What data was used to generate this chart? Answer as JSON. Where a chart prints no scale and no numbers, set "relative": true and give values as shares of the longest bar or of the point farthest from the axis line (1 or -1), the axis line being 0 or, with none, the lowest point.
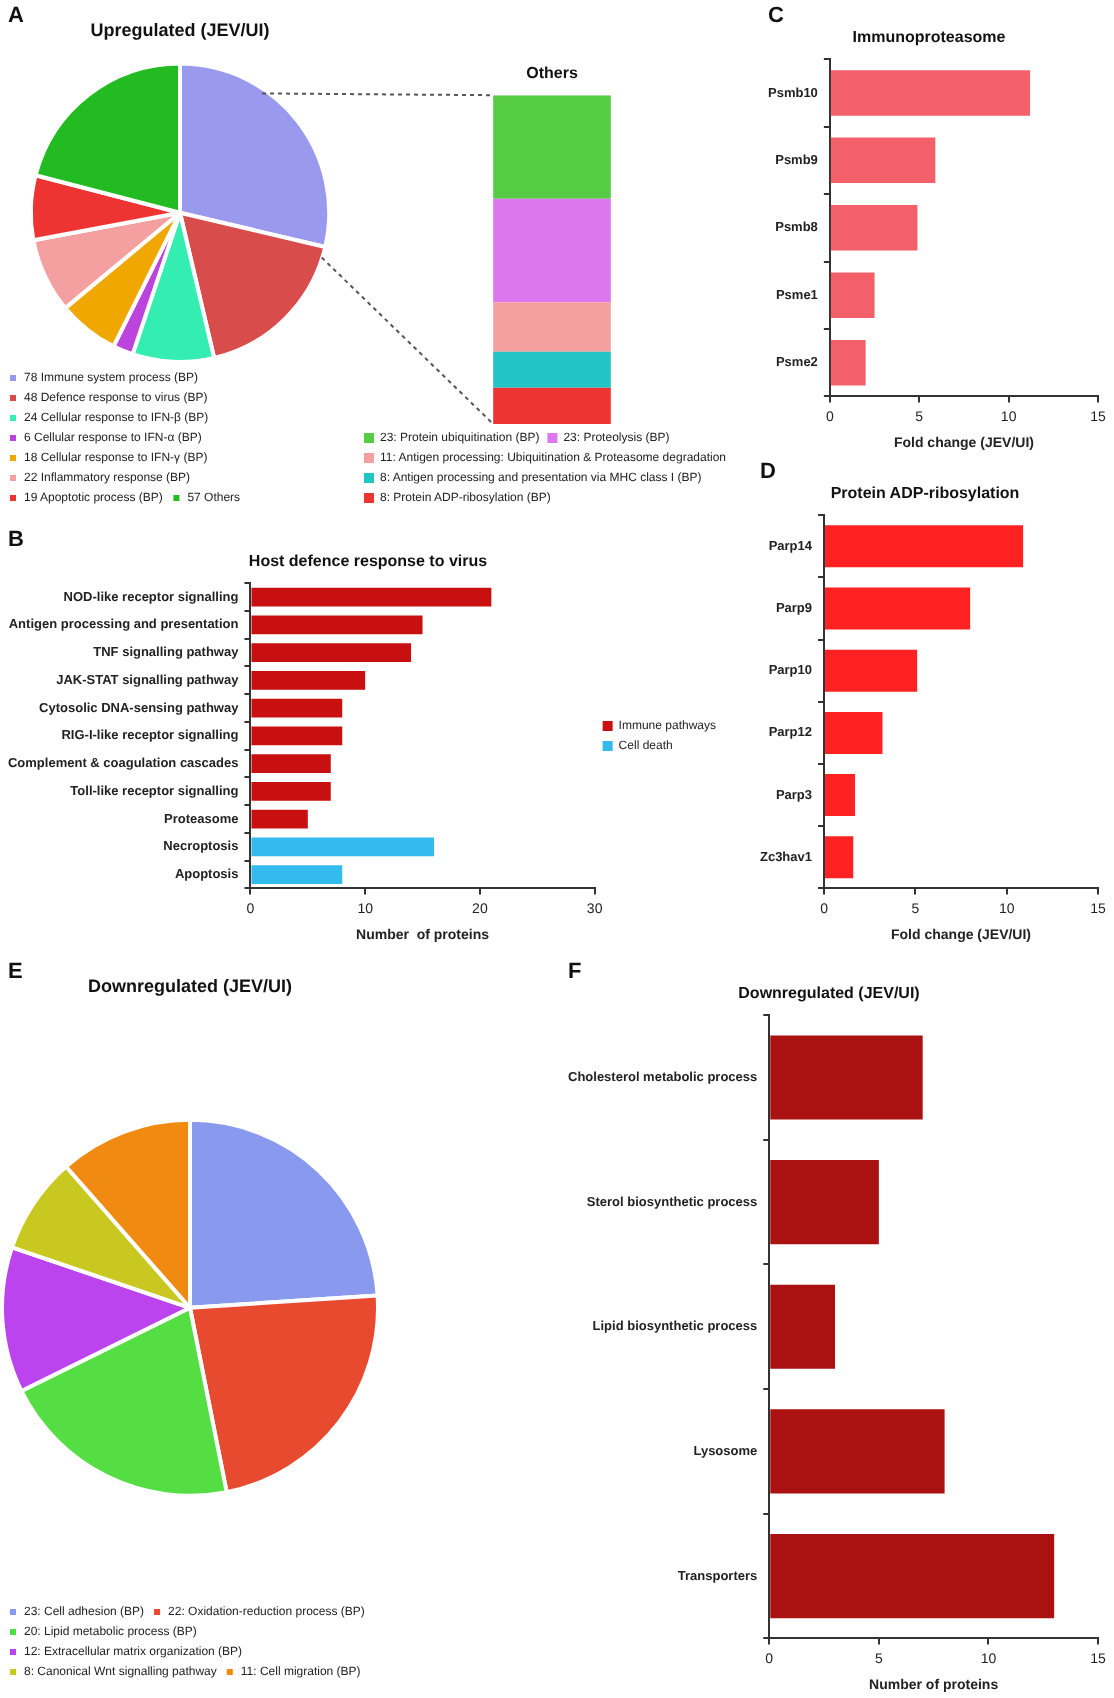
{
  "chart_data": [
    {
      "type": "pie",
      "title": "Upregulated (JEV/UI)",
      "annotations": [
        "A"
      ],
      "legend": "bottom",
      "categories": [
        "78 Immune system process (BP)",
        "48 Defence response to virus (BP)",
        "24 Cellular response to IFN-β (BP)",
        "6 Cellular response to IFN-α (BP)",
        "18 Cellular response to IFN-γ (BP)",
        "22 Inflammatory response (BP)",
        "19 Apoptotic process (BP)",
        "57 Others"
      ],
      "values": [
        78,
        48,
        24,
        6,
        18,
        22,
        19,
        57
      ],
      "colors": [
        "#9999ee",
        "#d94c4c",
        "#33eeb0",
        "#bb44dd",
        "#f0a800",
        "#f4a0a0",
        "#ee3333",
        "#22bb22"
      ]
    },
    {
      "type": "bar",
      "title": "Others",
      "stacked": true,
      "relative": true,
      "legend": "bottom",
      "categories": [
        null
      ],
      "series": [
        {
          "name": "8: Protein ADP-ribosylation (BP)",
          "color": "#ee3333",
          "values": [
            0.11
          ]
        },
        {
          "name": "8: Antigen processing and presentation via MHC class I (BP)",
          "color": "#22c4c4",
          "values": [
            0.11
          ]
        },
        {
          "name": "11: Antigen processing: Ubiquitination & Proteasome degradation",
          "color": "#f4a0a0",
          "values": [
            0.15
          ]
        },
        {
          "name": "23: Proteolysis (BP)",
          "color": "#dd77ee",
          "values": [
            0.315
          ]
        },
        {
          "name": "23: Protein ubiquitination (BP)",
          "color": "#55cc44",
          "values": [
            0.315
          ]
        }
      ]
    },
    {
      "type": "bar",
      "orientation": "horizontal",
      "title": "Immunoproteasome",
      "annotations": [
        "C"
      ],
      "xlabel": "Fold change (JEV/UI)",
      "categories": [
        "Psmb10",
        "Psmb9",
        "Psmb8",
        "Psme1",
        "Psme2"
      ],
      "values": [
        11.2,
        5.9,
        4.9,
        2.5,
        2.0
      ],
      "color": "#f4606a",
      "xlim": [
        0,
        15
      ],
      "xticks": [
        0,
        5,
        10,
        15
      ]
    },
    {
      "type": "bar",
      "orientation": "horizontal",
      "title": "Host defence response to virus",
      "annotations": [
        "B"
      ],
      "xlabel": "Number  of proteins",
      "legend": "right",
      "categories": [
        "NOD-like receptor signalling",
        "Antigen processing and presentation",
        "TNF signalling pathway",
        "JAK-STAT signalling pathway",
        "Cytosolic DNA-sensing pathway",
        "RIG-I-like receptor signalling",
        "Complement & coagulation cascades",
        "Toll-like receptor signalling",
        "Proteasome",
        "Necroptosis",
        "Apoptosis"
      ],
      "series": [
        {
          "name": "Immune pathways",
          "color": "#c81010",
          "values": [
            21,
            15,
            14,
            10,
            8,
            8,
            7,
            7,
            5,
            null,
            null
          ]
        },
        {
          "name": "Cell death",
          "color": "#33bbee",
          "values": [
            null,
            null,
            null,
            null,
            null,
            null,
            null,
            null,
            null,
            16,
            8
          ]
        }
      ],
      "xlim": [
        0,
        30
      ],
      "xticks": [
        0,
        10,
        20,
        30
      ]
    },
    {
      "type": "bar",
      "orientation": "horizontal",
      "title": "Protein ADP-ribosylation",
      "annotations": [
        "D"
      ],
      "xlabel": "Fold change (JEV/UI)",
      "categories": [
        "Parp14",
        "Parp9",
        "Parp10",
        "Parp12",
        "Parp3",
        "Zc3hav1"
      ],
      "values": [
        10.9,
        8.0,
        5.1,
        3.2,
        1.7,
        1.6
      ],
      "color": "#ff2222",
      "xlim": [
        0,
        15
      ],
      "xticks": [
        0,
        5,
        10,
        15
      ]
    },
    {
      "type": "pie",
      "title": "Downregulated (JEV/UI)",
      "annotations": [
        "E"
      ],
      "legend": "bottom",
      "categories": [
        "23: Cell adhesion (BP)",
        "22: Oxidation-reduction process (BP)",
        "20: Lipid metabolic process (BP)",
        "12: Extracellular matrix organization (BP)",
        "8: Canonical Wnt signalling pathway",
        "11: Cell migration (BP)"
      ],
      "values": [
        23,
        22,
        20,
        12,
        8,
        11
      ],
      "colors": [
        "#8899ee",
        "#e84a30",
        "#55dd44",
        "#bb44ee",
        "#c8c820",
        "#f08a10"
      ]
    },
    {
      "type": "bar",
      "orientation": "horizontal",
      "title": "Downregulated (JEV/UI)",
      "annotations": [
        "F"
      ],
      "xlabel": "Number of proteins",
      "categories": [
        "Cholesterol metabolic process",
        "Sterol biosynthetic process",
        "Lipid biosynthetic process",
        "Lysosome",
        "Transporters"
      ],
      "values": [
        7,
        5,
        3,
        8,
        13
      ],
      "color": "#aa1111",
      "xlim": [
        0,
        15
      ],
      "xticks": [
        0,
        5,
        10,
        15
      ]
    }
  ]
}
